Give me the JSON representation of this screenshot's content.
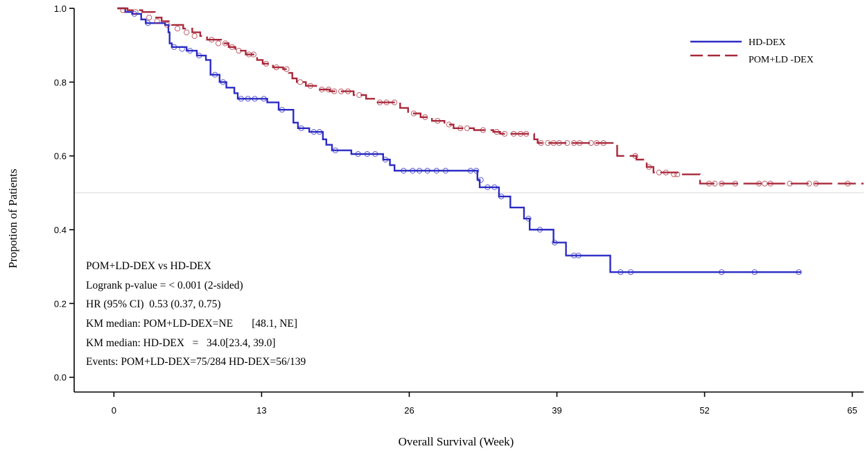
{
  "chart_data": {
    "type": "line",
    "xlabel": "Overall Survival (Week)",
    "ylabel": "Propotion of Patients",
    "xlim": [
      -3.5,
      66
    ],
    "ylim": [
      -0.04,
      1.0
    ],
    "x_ticks": [
      "0",
      "13",
      "26",
      "39",
      "52",
      "65"
    ],
    "x_tick_values": [
      0,
      13,
      26,
      39,
      52,
      65
    ],
    "y_ticks": [
      "0.0",
      "0.2",
      "0.4",
      "0.6",
      "0.8",
      "1.0"
    ],
    "y_tick_values": [
      0.0,
      0.2,
      0.4,
      0.6,
      0.8,
      1.0
    ],
    "reference_line_y": 0.5,
    "legend_position": "top-right",
    "series": [
      {
        "name": "HD-DEX",
        "color": "#2b2bc4",
        "line_style": "solid",
        "steps": [
          [
            0.3,
            1.0
          ],
          [
            1.0,
            0.99
          ],
          [
            1.6,
            0.985
          ],
          [
            2.4,
            0.97
          ],
          [
            2.8,
            0.96
          ],
          [
            4.5,
            0.955
          ],
          [
            4.8,
            0.935
          ],
          [
            4.9,
            0.905
          ],
          [
            5.1,
            0.895
          ],
          [
            6.4,
            0.885
          ],
          [
            7.3,
            0.872
          ],
          [
            8.1,
            0.86
          ],
          [
            8.5,
            0.82
          ],
          [
            9.3,
            0.8
          ],
          [
            9.9,
            0.785
          ],
          [
            10.6,
            0.77
          ],
          [
            10.9,
            0.755
          ],
          [
            13.5,
            0.745
          ],
          [
            14.5,
            0.725
          ],
          [
            15.8,
            0.69
          ],
          [
            16.2,
            0.675
          ],
          [
            17.2,
            0.665
          ],
          [
            18.4,
            0.645
          ],
          [
            18.7,
            0.63
          ],
          [
            19.2,
            0.615
          ],
          [
            20.9,
            0.605
          ],
          [
            23.7,
            0.59
          ],
          [
            24.3,
            0.575
          ],
          [
            24.7,
            0.56
          ],
          [
            32.0,
            0.535
          ],
          [
            32.2,
            0.515
          ],
          [
            33.9,
            0.49
          ],
          [
            34.9,
            0.46
          ],
          [
            36.1,
            0.43
          ],
          [
            36.6,
            0.4
          ],
          [
            38.7,
            0.365
          ],
          [
            39.8,
            0.33
          ],
          [
            43.7,
            0.285
          ],
          [
            60.5,
            0.285
          ]
        ],
        "censored": [
          [
            1.8,
            0.985
          ],
          [
            3.0,
            0.96
          ],
          [
            5.3,
            0.895
          ],
          [
            6.0,
            0.89
          ],
          [
            6.7,
            0.885
          ],
          [
            7.5,
            0.872
          ],
          [
            8.9,
            0.82
          ],
          [
            9.6,
            0.8
          ],
          [
            11.2,
            0.755
          ],
          [
            11.8,
            0.755
          ],
          [
            12.4,
            0.755
          ],
          [
            13.2,
            0.755
          ],
          [
            14.8,
            0.725
          ],
          [
            16.5,
            0.675
          ],
          [
            17.6,
            0.665
          ],
          [
            18.1,
            0.665
          ],
          [
            19.5,
            0.615
          ],
          [
            21.5,
            0.605
          ],
          [
            22.3,
            0.605
          ],
          [
            23.0,
            0.605
          ],
          [
            23.9,
            0.59
          ],
          [
            25.5,
            0.56
          ],
          [
            26.3,
            0.56
          ],
          [
            26.9,
            0.56
          ],
          [
            27.6,
            0.56
          ],
          [
            28.4,
            0.56
          ],
          [
            29.2,
            0.56
          ],
          [
            31.4,
            0.56
          ],
          [
            31.9,
            0.56
          ],
          [
            32.3,
            0.535
          ],
          [
            32.9,
            0.515
          ],
          [
            33.5,
            0.515
          ],
          [
            34.1,
            0.49
          ],
          [
            36.5,
            0.43
          ],
          [
            37.5,
            0.4
          ],
          [
            38.8,
            0.365
          ],
          [
            40.5,
            0.33
          ],
          [
            40.9,
            0.33
          ],
          [
            44.6,
            0.285
          ],
          [
            45.5,
            0.285
          ],
          [
            53.5,
            0.285
          ],
          [
            56.4,
            0.285
          ],
          [
            60.3,
            0.285
          ]
        ]
      },
      {
        "name": "POM+LD -DEX",
        "color": "#a8283a",
        "line_style": "dashed",
        "steps": [
          [
            0.3,
            1.0
          ],
          [
            1.2,
            0.995
          ],
          [
            2.5,
            0.99
          ],
          [
            3.6,
            0.975
          ],
          [
            4.2,
            0.965
          ],
          [
            5.1,
            0.955
          ],
          [
            6.1,
            0.945
          ],
          [
            6.9,
            0.935
          ],
          [
            7.6,
            0.925
          ],
          [
            8.2,
            0.915
          ],
          [
            9.6,
            0.905
          ],
          [
            10.1,
            0.895
          ],
          [
            10.7,
            0.885
          ],
          [
            11.6,
            0.875
          ],
          [
            12.6,
            0.86
          ],
          [
            13.1,
            0.85
          ],
          [
            14.0,
            0.84
          ],
          [
            14.9,
            0.835
          ],
          [
            15.4,
            0.825
          ],
          [
            15.7,
            0.81
          ],
          [
            16.1,
            0.8
          ],
          [
            16.9,
            0.79
          ],
          [
            17.8,
            0.78
          ],
          [
            19.0,
            0.775
          ],
          [
            21.1,
            0.765
          ],
          [
            22.2,
            0.755
          ],
          [
            23.0,
            0.745
          ],
          [
            25.2,
            0.73
          ],
          [
            25.9,
            0.715
          ],
          [
            27.0,
            0.705
          ],
          [
            28.0,
            0.695
          ],
          [
            29.1,
            0.685
          ],
          [
            29.9,
            0.675
          ],
          [
            31.7,
            0.67
          ],
          [
            33.4,
            0.665
          ],
          [
            34.0,
            0.66
          ],
          [
            37.0,
            0.645
          ],
          [
            37.3,
            0.635
          ],
          [
            44.3,
            0.6
          ],
          [
            46.0,
            0.59
          ],
          [
            46.9,
            0.57
          ],
          [
            47.5,
            0.555
          ],
          [
            50.0,
            0.55
          ],
          [
            51.6,
            0.525
          ],
          [
            66.0,
            0.525
          ]
        ],
        "censored": [
          [
            0.8,
            0.995
          ],
          [
            1.9,
            0.99
          ],
          [
            3.1,
            0.975
          ],
          [
            3.8,
            0.965
          ],
          [
            4.7,
            0.955
          ],
          [
            5.6,
            0.945
          ],
          [
            6.4,
            0.935
          ],
          [
            7.1,
            0.925
          ],
          [
            8.6,
            0.915
          ],
          [
            9.2,
            0.905
          ],
          [
            9.8,
            0.905
          ],
          [
            10.4,
            0.895
          ],
          [
            11.0,
            0.885
          ],
          [
            11.9,
            0.875
          ],
          [
            12.3,
            0.875
          ],
          [
            13.4,
            0.85
          ],
          [
            14.3,
            0.84
          ],
          [
            15.2,
            0.835
          ],
          [
            16.4,
            0.8
          ],
          [
            17.3,
            0.79
          ],
          [
            18.3,
            0.78
          ],
          [
            18.9,
            0.78
          ],
          [
            19.4,
            0.775
          ],
          [
            20.0,
            0.775
          ],
          [
            20.6,
            0.775
          ],
          [
            21.6,
            0.765
          ],
          [
            23.4,
            0.745
          ],
          [
            24.0,
            0.745
          ],
          [
            24.7,
            0.745
          ],
          [
            26.4,
            0.715
          ],
          [
            27.4,
            0.705
          ],
          [
            28.5,
            0.695
          ],
          [
            29.5,
            0.685
          ],
          [
            30.5,
            0.675
          ],
          [
            31.1,
            0.675
          ],
          [
            32.5,
            0.67
          ],
          [
            33.7,
            0.665
          ],
          [
            34.4,
            0.66
          ],
          [
            35.2,
            0.66
          ],
          [
            35.8,
            0.66
          ],
          [
            36.3,
            0.66
          ],
          [
            37.6,
            0.635
          ],
          [
            38.2,
            0.635
          ],
          [
            38.7,
            0.635
          ],
          [
            39.2,
            0.635
          ],
          [
            39.9,
            0.635
          ],
          [
            40.5,
            0.635
          ],
          [
            41.0,
            0.635
          ],
          [
            42.0,
            0.635
          ],
          [
            42.5,
            0.635
          ],
          [
            43.1,
            0.635
          ],
          [
            45.9,
            0.6
          ],
          [
            47.1,
            0.57
          ],
          [
            48.0,
            0.555
          ],
          [
            48.6,
            0.555
          ],
          [
            49.3,
            0.55
          ],
          [
            49.6,
            0.55
          ],
          [
            52.4,
            0.525
          ],
          [
            52.9,
            0.525
          ],
          [
            53.5,
            0.525
          ],
          [
            54.7,
            0.525
          ],
          [
            56.8,
            0.525
          ],
          [
            57.3,
            0.525
          ],
          [
            57.8,
            0.525
          ],
          [
            59.5,
            0.525
          ],
          [
            61.2,
            0.525
          ],
          [
            61.8,
            0.525
          ],
          [
            64.6,
            0.525
          ]
        ]
      }
    ],
    "annotations": [
      "POM+LD-DEX vs HD-DEX",
      "Logrank p-value = < 0.001 (2-sided)",
      "HR (95% CI)  0.53 (0.37, 0.75)",
      "KM median: POM+LD-DEX=NE       [48.1, NE]",
      "KM median: HD-DEX   =   34.0[23.4, 39.0]",
      "Events: POM+LD-DEX=75/284 HD-DEX=56/139"
    ]
  }
}
